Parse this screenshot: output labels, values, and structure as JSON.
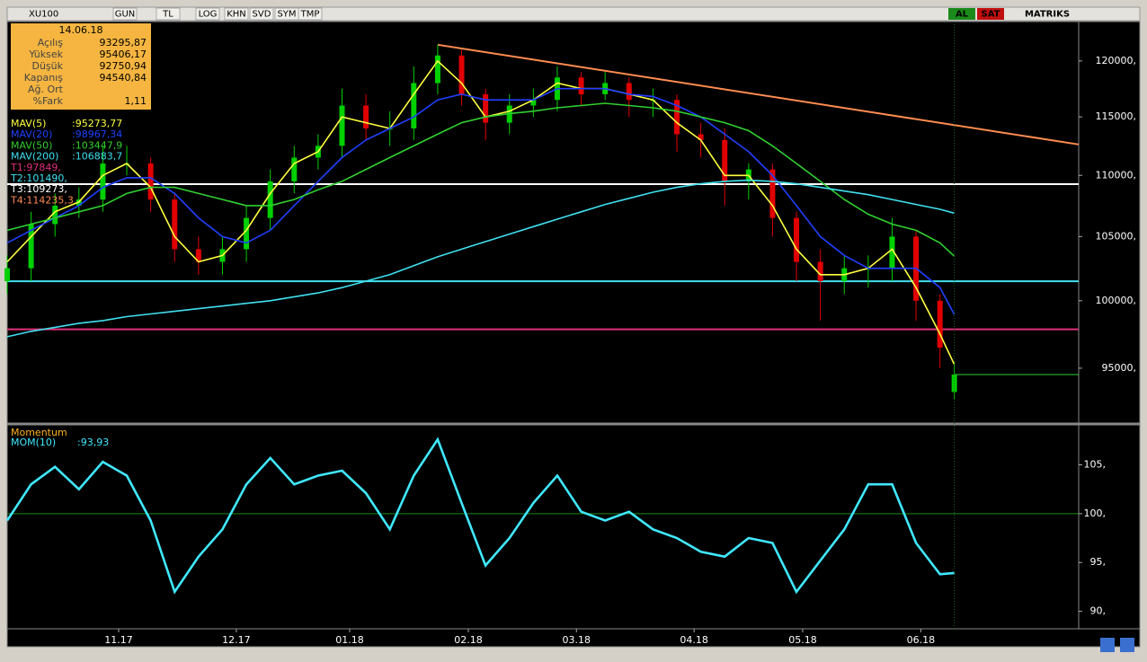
{
  "toolbar": {
    "symbol": "XU100",
    "buttons": [
      "GUN",
      "TL",
      "LOG",
      "KHN",
      "SVD",
      "SYM",
      "TMP"
    ],
    "buy": "AL",
    "sell": "SAT",
    "brand": "MATRIKS"
  },
  "info_box": {
    "date": "14.06.18",
    "rows": [
      {
        "label": "Açılış",
        "value": "93295,87"
      },
      {
        "label": "Yüksek",
        "value": "95406,17"
      },
      {
        "label": "Düşük",
        "value": "92750,94"
      },
      {
        "label": "Kapanış",
        "value": "94540,84"
      },
      {
        "label": "Ağ. Ort"
      },
      {
        "label": "%Fark",
        "value": "1,11"
      }
    ]
  },
  "chart_data": [
    {
      "type": "candlestick",
      "log_scale": true,
      "up_color": "#00d000",
      "down_color": "#e00000",
      "x": [
        0,
        5,
        10,
        15,
        20,
        25,
        30,
        35,
        40,
        45,
        50,
        55,
        60,
        65,
        70,
        75,
        80,
        85,
        90,
        95,
        100,
        105,
        110,
        115,
        120,
        125,
        130,
        135,
        140,
        145,
        150,
        155,
        160,
        165,
        170,
        175,
        180,
        185,
        190,
        195,
        198
      ],
      "candles": {
        "open": [
          101500,
          102500,
          106000,
          107500,
          108000,
          111000,
          111000,
          108000,
          104000,
          103000,
          104000,
          106500,
          109500,
          111500,
          112500,
          116000,
          114000,
          114000,
          118000,
          120500,
          117000,
          114500,
          116000,
          116500,
          118500,
          117000,
          118000,
          116500,
          116500,
          113500,
          113000,
          109500,
          110500,
          106500,
          103000,
          101500,
          102500,
          102500,
          105000,
          100000,
          93295.87
        ],
        "high": [
          103500,
          107000,
          108500,
          109000,
          112500,
          112500,
          111500,
          108500,
          105000,
          105000,
          107500,
          110500,
          112500,
          113500,
          117500,
          117000,
          115500,
          119500,
          121500,
          121000,
          117500,
          117000,
          117500,
          119500,
          119000,
          119000,
          118500,
          117500,
          117000,
          114500,
          114000,
          111000,
          111000,
          107000,
          104000,
          103500,
          103500,
          106500,
          105500,
          100500,
          95406.17
        ],
        "low": [
          100500,
          101500,
          105000,
          106500,
          107000,
          110000,
          107000,
          103000,
          102000,
          102000,
          103000,
          105500,
          108500,
          110500,
          111500,
          113000,
          112500,
          113000,
          117000,
          116000,
          113000,
          113500,
          115000,
          115500,
          116000,
          116500,
          115000,
          115000,
          112000,
          111500,
          107500,
          108000,
          105000,
          101500,
          98500,
          100500,
          101000,
          101500,
          98500,
          95000,
          92750.94
        ],
        "close": [
          102500,
          106000,
          107500,
          108000,
          111000,
          111000,
          108000,
          104000,
          103000,
          104000,
          106500,
          109500,
          111500,
          112500,
          116000,
          114000,
          114000,
          118000,
          120500,
          117000,
          114500,
          116000,
          116500,
          118500,
          117000,
          118000,
          116500,
          116500,
          113500,
          113000,
          109500,
          110500,
          106500,
          103000,
          101500,
          102500,
          102500,
          105000,
          100000,
          96500,
          94540.84
        ]
      },
      "series": [
        {
          "name": "MAV(5)",
          "label": ":95273,77",
          "color": "#ffff40",
          "values": [
            103000,
            105000,
            107000,
            107800,
            110000,
            111000,
            109000,
            105000,
            103000,
            103500,
            105500,
            108500,
            111000,
            112000,
            115000,
            114500,
            114000,
            117000,
            120000,
            118000,
            115000,
            115500,
            116500,
            118000,
            117500,
            117500,
            117000,
            116500,
            114500,
            113000,
            110000,
            110000,
            107500,
            104000,
            102000,
            102000,
            102500,
            104000,
            101000,
            97500,
            95273.77
          ]
        },
        {
          "name": "MAV(20)",
          "label": ":98967,34",
          "color": "#2040ff",
          "values": [
            104500,
            105500,
            106500,
            107500,
            109000,
            109800,
            109800,
            108500,
            106500,
            105000,
            104500,
            105500,
            107500,
            109500,
            111500,
            113000,
            114000,
            115000,
            116500,
            117000,
            116500,
            116500,
            116500,
            117500,
            117500,
            117500,
            117000,
            116800,
            116000,
            115000,
            113500,
            112000,
            110000,
            107500,
            105000,
            103500,
            102500,
            102500,
            102500,
            101000,
            98967.34
          ]
        },
        {
          "name": "MAV(50)",
          "label": ":103447,9",
          "color": "#30d030",
          "values": [
            105500,
            106000,
            106500,
            107000,
            107500,
            108500,
            109000,
            109000,
            108500,
            108000,
            107500,
            107500,
            108000,
            108800,
            109500,
            110500,
            111500,
            112500,
            113500,
            114500,
            115000,
            115300,
            115500,
            115800,
            116000,
            116200,
            116000,
            115800,
            115500,
            115000,
            114500,
            113800,
            112500,
            111000,
            109500,
            108000,
            106800,
            106000,
            105500,
            104500,
            103447.9
          ]
        },
        {
          "name": "MAV(200)",
          "label": ":106883,7",
          "color": "#40e0f0",
          "values": [
            97300,
            97700,
            98000,
            98300,
            98500,
            98800,
            99000,
            99200,
            99400,
            99600,
            99800,
            100000,
            100300,
            100600,
            101000,
            101500,
            102000,
            102700,
            103400,
            104000,
            104600,
            105200,
            105800,
            106400,
            107000,
            107600,
            108100,
            108600,
            109000,
            109300,
            109500,
            109600,
            109500,
            109300,
            109000,
            108700,
            108400,
            108000,
            107600,
            107200,
            106883.7
          ]
        }
      ],
      "levels": [
        {
          "label": "T1:97849,",
          "value": 97849,
          "color": "#e0307a"
        },
        {
          "label": "T2:101490,",
          "value": 101490,
          "color": "#40e0f0"
        },
        {
          "label": "T3:109273,",
          "value": 109273,
          "color": "#ffffff"
        }
      ],
      "trendline": {
        "label": "T4:114235,3",
        "x": [
          90,
          224
        ],
        "values": [
          121490,
          112620
        ],
        "color": "#ff8c50"
      },
      "xlim": [
        0,
        224
      ],
      "xticks": [
        {
          "value": 23.3,
          "label": "11.17"
        },
        {
          "value": 47.9,
          "label": "12.17"
        },
        {
          "value": 71.6,
          "label": "01.18"
        },
        {
          "value": 96.4,
          "label": "02.18"
        },
        {
          "value": 119,
          "label": "03.18"
        },
        {
          "value": 143.6,
          "label": "04.18"
        },
        {
          "value": 166.3,
          "label": "05.18"
        },
        {
          "value": 191,
          "label": "06.18"
        }
      ],
      "ylim": [
        91180,
        123650
      ],
      "yticks": [
        {
          "value": 95000,
          "label": "95000,"
        },
        {
          "value": 100000,
          "label": "100000,"
        },
        {
          "value": 105000,
          "label": "105000,"
        },
        {
          "value": 110000,
          "label": "110000,"
        },
        {
          "value": 115000,
          "label": "115000,"
        },
        {
          "value": 120000,
          "label": "120000,"
        }
      ]
    },
    {
      "type": "line",
      "title": "Momentum",
      "x": [
        0,
        5,
        10,
        15,
        20,
        25,
        30,
        35,
        40,
        45,
        50,
        55,
        60,
        65,
        70,
        75,
        80,
        85,
        90,
        95,
        100,
        105,
        110,
        115,
        120,
        125,
        130,
        135,
        140,
        145,
        150,
        155,
        160,
        165,
        170,
        175,
        180,
        185,
        190,
        195,
        198
      ],
      "series": [
        {
          "name": "MOM(10)",
          "label": ":93,93",
          "color": "#40e8ff",
          "values": [
            99.3,
            103,
            104.8,
            102.5,
            105.3,
            103.9,
            99.3,
            92,
            95.6,
            98.4,
            103,
            105.7,
            103,
            103.9,
            104.4,
            102.1,
            98.4,
            103.9,
            107.6,
            101.1,
            94.7,
            97.5,
            101.1,
            103.9,
            100.2,
            99.3,
            100.2,
            98.4,
            97.5,
            96.1,
            95.6,
            97.5,
            97,
            92,
            95.2,
            98.4,
            103,
            103,
            97,
            93.8,
            93.93
          ]
        }
      ],
      "reference_line": 100,
      "xlim": [
        0,
        224
      ],
      "ylim": [
        88.4,
        109
      ],
      "yticks": [
        {
          "value": 90,
          "label": "90,"
        },
        {
          "value": 95,
          "label": "95,"
        },
        {
          "value": 100,
          "label": "100,"
        },
        {
          "value": 105,
          "label": "105,"
        }
      ]
    }
  ]
}
